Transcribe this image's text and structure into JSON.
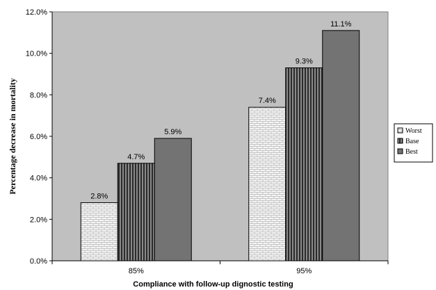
{
  "chart_data": {
    "type": "bar",
    "title": "",
    "xlabel": "Compliance with follow-up dignostic testing",
    "ylabel": "Percentage decrease in mortality",
    "categories": [
      "85%",
      "95%"
    ],
    "series": [
      {
        "name": "Worst",
        "values": [
          2.8,
          7.4
        ],
        "value_labels": [
          "2.8%",
          "7.4%"
        ],
        "color": "#f2f2f2",
        "pattern": "bricks"
      },
      {
        "name": "Base",
        "values": [
          4.7,
          9.3
        ],
        "value_labels": [
          "4.7%",
          "9.3%"
        ],
        "color": "#555555",
        "pattern": "vertical-stripes"
      },
      {
        "name": "Best",
        "values": [
          5.9,
          11.1
        ],
        "value_labels": [
          "5.9%",
          "11.1%"
        ],
        "color": "#737373",
        "pattern": "solid"
      }
    ],
    "ylim": [
      0,
      12
    ],
    "y_ticks": [
      0,
      2,
      4,
      6,
      8,
      10,
      12
    ],
    "y_tick_labels": [
      "0.0%",
      "2.0%",
      "4.0%",
      "6.0%",
      "8.0%",
      "10.0%",
      "12.0%"
    ],
    "grid": false,
    "legend": "right",
    "plot_background": "#c0c0c0"
  }
}
